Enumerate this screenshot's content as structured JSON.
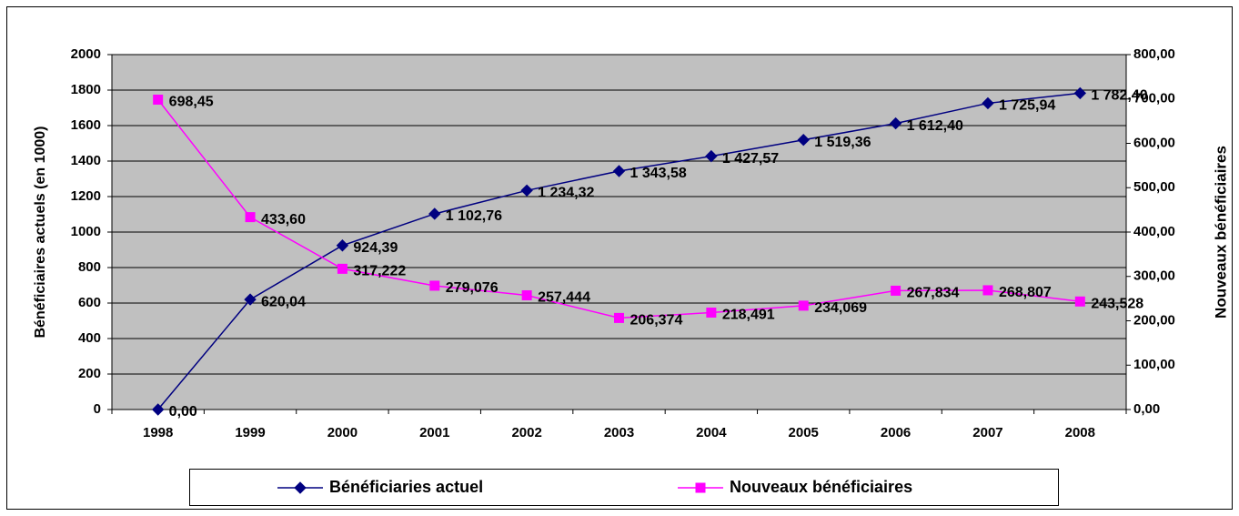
{
  "chart_data": {
    "type": "line",
    "ylabel": "Bénéficiaires actuels (en 1000)",
    "y2label": "Nouveaux bénéficiaires",
    "categories": [
      "1998",
      "1999",
      "2000",
      "2001",
      "2002",
      "2003",
      "2004",
      "2005",
      "2006",
      "2007",
      "2008"
    ],
    "series": [
      {
        "name": "Bénéficiaries actuel",
        "color": "#000080",
        "marker": "diamond",
        "values": [
          0,
          620.04,
          924.39,
          1102.76,
          1234.32,
          1343.58,
          1427.57,
          1519.36,
          1612.4,
          1725.94,
          1782.4
        ],
        "value_labels": [
          "0,00",
          "620,04",
          "924,39",
          "1 102,76",
          "1 234,32",
          "1 343,58",
          "1 427,57",
          "1 519,36",
          "1 612,40",
          "1 725,94",
          "1 782,40"
        ]
      },
      {
        "name": "Nouveaux bénéficiaires",
        "color": "#ff00ff",
        "marker": "square",
        "axis": "y2",
        "values": [
          698.45,
          433.6,
          317.222,
          279.076,
          257.444,
          206.374,
          218.491,
          234.069,
          267.834,
          268.807,
          243.528
        ],
        "value_labels": [
          "698,45",
          "433,60",
          "317,222",
          "279,076",
          "257,444",
          "206,374",
          "218,491",
          "234,069",
          "267,834",
          "268,807",
          "243,528"
        ]
      }
    ],
    "ylim": [
      0,
      2000
    ],
    "yticks": [
      0,
      200,
      400,
      600,
      800,
      1000,
      1200,
      1400,
      1600,
      1800,
      2000
    ],
    "y2lim": [
      0,
      800
    ],
    "y2ticks": [
      {
        "value": 0,
        "label": "0,00"
      },
      {
        "value": 100,
        "label": "100,00"
      },
      {
        "value": 200,
        "label": "200,00"
      },
      {
        "value": 300,
        "label": "300,00"
      },
      {
        "value": 400,
        "label": "400,00"
      },
      {
        "value": 500,
        "label": "500,00"
      },
      {
        "value": 600,
        "label": "600,00"
      },
      {
        "value": 700,
        "label": "700,00"
      },
      {
        "value": 800,
        "label": "800,00"
      }
    ],
    "grid": true,
    "plot_background": "#c0c0c0",
    "legend": "bottom"
  }
}
